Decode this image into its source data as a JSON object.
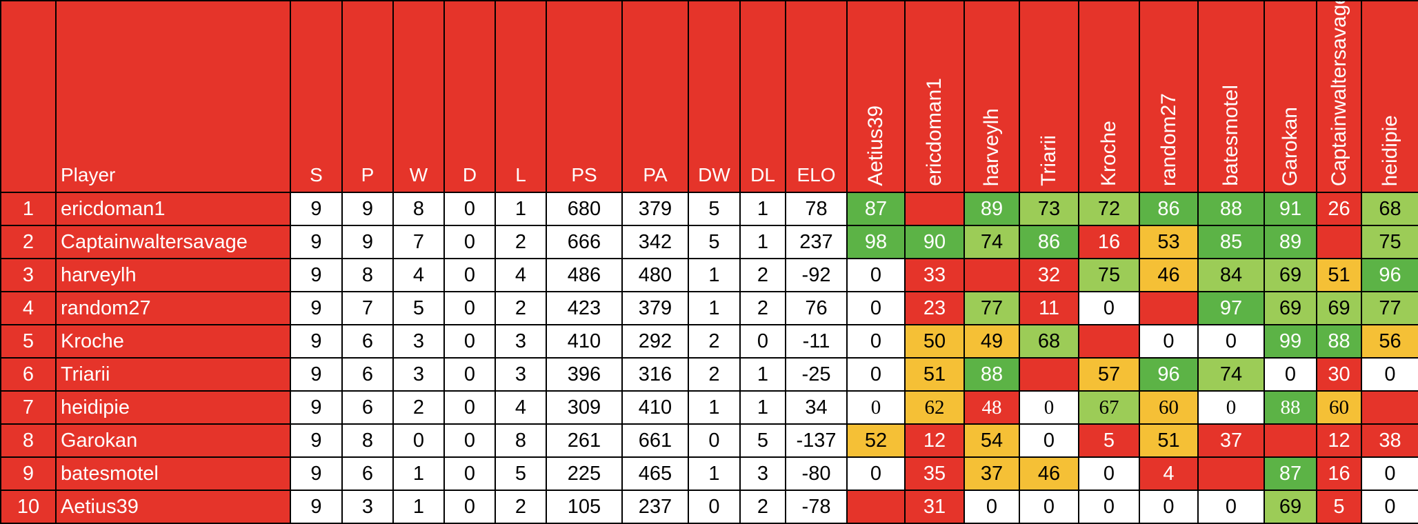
{
  "header": {
    "rank": "",
    "player": "Player",
    "stats": [
      "S",
      "P",
      "W",
      "D",
      "L",
      "PS",
      "PA",
      "DW",
      "DL",
      "ELO"
    ],
    "opponents": [
      "Aetius39",
      "ericdoman1",
      "harveylh",
      "Triarii",
      "Kroche",
      "random27",
      "batesmotel",
      "Garokan",
      "Captainwaltersavage",
      "heidipie"
    ]
  },
  "colors": {
    "header_bg": "#e5342a",
    "red": "#e5342a",
    "darkgreen": "#5cb346",
    "lightgreen": "#9ccc57",
    "yellow": "#f5c036",
    "white": "#ffffff"
  },
  "rows": [
    {
      "rank": "1",
      "player": "ericdoman1",
      "stats": [
        "9",
        "9",
        "8",
        "0",
        "1",
        "680",
        "379",
        "5",
        "1",
        "78"
      ],
      "cells": [
        {
          "v": "87",
          "c": "darkgreen"
        },
        {
          "v": "",
          "c": "red"
        },
        {
          "v": "89",
          "c": "darkgreen"
        },
        {
          "v": "73",
          "c": "lightgreen"
        },
        {
          "v": "72",
          "c": "lightgreen"
        },
        {
          "v": "86",
          "c": "darkgreen"
        },
        {
          "v": "88",
          "c": "darkgreen"
        },
        {
          "v": "91",
          "c": "darkgreen"
        },
        {
          "v": "26",
          "c": "red"
        },
        {
          "v": "68",
          "c": "lightgreen"
        }
      ]
    },
    {
      "rank": "2",
      "player": "Captainwaltersavage",
      "stats": [
        "9",
        "9",
        "7",
        "0",
        "2",
        "666",
        "342",
        "5",
        "1",
        "237"
      ],
      "cells": [
        {
          "v": "98",
          "c": "darkgreen"
        },
        {
          "v": "90",
          "c": "darkgreen"
        },
        {
          "v": "74",
          "c": "lightgreen"
        },
        {
          "v": "86",
          "c": "darkgreen"
        },
        {
          "v": "16",
          "c": "red"
        },
        {
          "v": "53",
          "c": "yellow"
        },
        {
          "v": "85",
          "c": "darkgreen"
        },
        {
          "v": "89",
          "c": "darkgreen"
        },
        {
          "v": "",
          "c": "red"
        },
        {
          "v": "75",
          "c": "lightgreen"
        }
      ]
    },
    {
      "rank": "3",
      "player": "harveylh",
      "stats": [
        "9",
        "8",
        "4",
        "0",
        "4",
        "486",
        "480",
        "1",
        "2",
        "-92"
      ],
      "cells": [
        {
          "v": "0",
          "c": "white"
        },
        {
          "v": "33",
          "c": "red"
        },
        {
          "v": "",
          "c": "red"
        },
        {
          "v": "32",
          "c": "red"
        },
        {
          "v": "75",
          "c": "lightgreen"
        },
        {
          "v": "46",
          "c": "yellow"
        },
        {
          "v": "84",
          "c": "lightgreen"
        },
        {
          "v": "69",
          "c": "lightgreen"
        },
        {
          "v": "51",
          "c": "yellow"
        },
        {
          "v": "96",
          "c": "darkgreen"
        }
      ]
    },
    {
      "rank": "4",
      "player": "random27",
      "stats": [
        "9",
        "7",
        "5",
        "0",
        "2",
        "423",
        "379",
        "1",
        "2",
        "76"
      ],
      "cells": [
        {
          "v": "0",
          "c": "white"
        },
        {
          "v": "23",
          "c": "red"
        },
        {
          "v": "77",
          "c": "lightgreen"
        },
        {
          "v": "11",
          "c": "red"
        },
        {
          "v": "0",
          "c": "white"
        },
        {
          "v": "",
          "c": "red"
        },
        {
          "v": "97",
          "c": "darkgreen"
        },
        {
          "v": "69",
          "c": "lightgreen"
        },
        {
          "v": "69",
          "c": "lightgreen"
        },
        {
          "v": "77",
          "c": "lightgreen"
        }
      ]
    },
    {
      "rank": "5",
      "player": "Kroche",
      "stats": [
        "9",
        "6",
        "3",
        "0",
        "3",
        "410",
        "292",
        "2",
        "0",
        "-11"
      ],
      "cells": [
        {
          "v": "0",
          "c": "white"
        },
        {
          "v": "50",
          "c": "yellow"
        },
        {
          "v": "49",
          "c": "yellow"
        },
        {
          "v": "68",
          "c": "lightgreen"
        },
        {
          "v": "",
          "c": "red"
        },
        {
          "v": "0",
          "c": "white"
        },
        {
          "v": "0",
          "c": "white"
        },
        {
          "v": "99",
          "c": "darkgreen"
        },
        {
          "v": "88",
          "c": "darkgreen"
        },
        {
          "v": "56",
          "c": "yellow"
        }
      ]
    },
    {
      "rank": "6",
      "player": "Triarii",
      "stats": [
        "9",
        "6",
        "3",
        "0",
        "3",
        "396",
        "316",
        "2",
        "1",
        "-25"
      ],
      "cells": [
        {
          "v": "0",
          "c": "white"
        },
        {
          "v": "51",
          "c": "yellow"
        },
        {
          "v": "88",
          "c": "darkgreen"
        },
        {
          "v": "",
          "c": "red"
        },
        {
          "v": "57",
          "c": "yellow"
        },
        {
          "v": "96",
          "c": "darkgreen"
        },
        {
          "v": "74",
          "c": "lightgreen"
        },
        {
          "v": "0",
          "c": "white"
        },
        {
          "v": "30",
          "c": "red"
        },
        {
          "v": "0",
          "c": "white"
        }
      ]
    },
    {
      "rank": "7",
      "player": "heidipie",
      "stats": [
        "9",
        "6",
        "2",
        "0",
        "4",
        "309",
        "410",
        "1",
        "1",
        "34"
      ],
      "serif": true,
      "cells": [
        {
          "v": "0",
          "c": "white"
        },
        {
          "v": "62",
          "c": "yellow"
        },
        {
          "v": "48",
          "c": "red"
        },
        {
          "v": "0",
          "c": "white"
        },
        {
          "v": "67",
          "c": "lightgreen"
        },
        {
          "v": "60",
          "c": "yellow"
        },
        {
          "v": "0",
          "c": "white"
        },
        {
          "v": "88",
          "c": "darkgreen"
        },
        {
          "v": "60",
          "c": "yellow"
        },
        {
          "v": "",
          "c": "red"
        }
      ]
    },
    {
      "rank": "8",
      "player": "Garokan",
      "stats": [
        "9",
        "8",
        "0",
        "0",
        "8",
        "261",
        "661",
        "0",
        "5",
        "-137"
      ],
      "cells": [
        {
          "v": "52",
          "c": "yellow"
        },
        {
          "v": "12",
          "c": "red"
        },
        {
          "v": "54",
          "c": "yellow"
        },
        {
          "v": "0",
          "c": "white"
        },
        {
          "v": "5",
          "c": "red"
        },
        {
          "v": "51",
          "c": "yellow"
        },
        {
          "v": "37",
          "c": "red"
        },
        {
          "v": "",
          "c": "red"
        },
        {
          "v": "12",
          "c": "red"
        },
        {
          "v": "38",
          "c": "red"
        }
      ]
    },
    {
      "rank": "9",
      "player": "batesmotel",
      "stats": [
        "9",
        "6",
        "1",
        "0",
        "5",
        "225",
        "465",
        "1",
        "3",
        "-80"
      ],
      "cells": [
        {
          "v": "0",
          "c": "white"
        },
        {
          "v": "35",
          "c": "red"
        },
        {
          "v": "37",
          "c": "yellow"
        },
        {
          "v": "46",
          "c": "yellow"
        },
        {
          "v": "0",
          "c": "white"
        },
        {
          "v": "4",
          "c": "red"
        },
        {
          "v": "",
          "c": "red"
        },
        {
          "v": "87",
          "c": "darkgreen"
        },
        {
          "v": "16",
          "c": "red"
        },
        {
          "v": "0",
          "c": "white"
        }
      ]
    },
    {
      "rank": "10",
      "player": "Aetius39",
      "stats": [
        "9",
        "3",
        "1",
        "0",
        "2",
        "105",
        "237",
        "0",
        "2",
        "-78"
      ],
      "cells": [
        {
          "v": "",
          "c": "red"
        },
        {
          "v": "31",
          "c": "red"
        },
        {
          "v": "0",
          "c": "white"
        },
        {
          "v": "0",
          "c": "white"
        },
        {
          "v": "0",
          "c": "white"
        },
        {
          "v": "0",
          "c": "white"
        },
        {
          "v": "0",
          "c": "white"
        },
        {
          "v": "69",
          "c": "lightgreen"
        },
        {
          "v": "5",
          "c": "red"
        },
        {
          "v": "0",
          "c": "white"
        }
      ]
    }
  ]
}
